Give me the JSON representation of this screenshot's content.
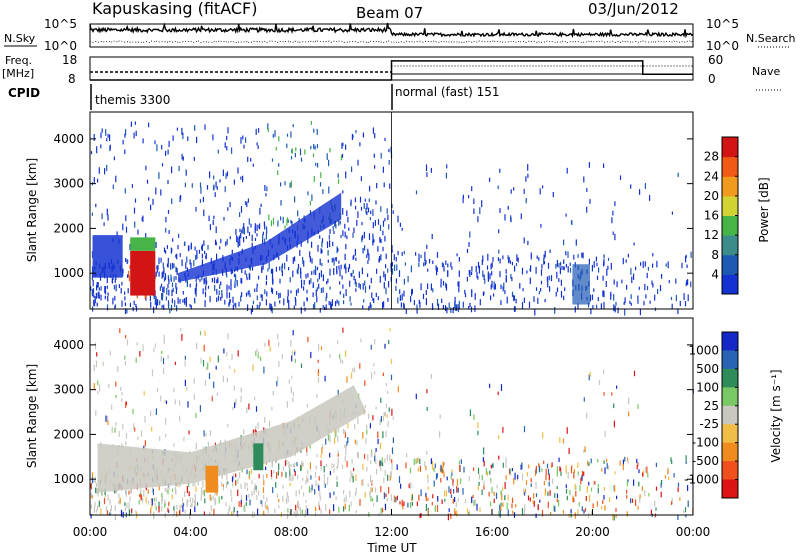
{
  "header": {
    "station": "Kapuskasing (fitACF)",
    "beam": "Beam 07",
    "date": "03/Jun/2012"
  },
  "strip_labels": {
    "nsky": "N.Sky",
    "nsearch": "N.Search",
    "freq": "Freq.",
    "freq_unit": "[MHz]",
    "nave": "Nave",
    "cpid": "CPID"
  },
  "cpid_segments": [
    {
      "label": "themis 3300",
      "start_hour": 0,
      "end_hour": 12
    },
    {
      "label": "normal (fast) 151",
      "start_hour": 12,
      "end_hour": 24
    }
  ],
  "chart_data": [
    {
      "type": "line",
      "id": "noise",
      "left_ticks": [
        "10^5",
        "10^0"
      ],
      "right_ticks": [
        "10^5",
        "10^0"
      ],
      "series": [
        {
          "name": "N.Sky"
        },
        {
          "name": "N.Search"
        }
      ]
    },
    {
      "type": "line",
      "id": "freq-nave",
      "left_ticks": [
        "18",
        "8"
      ],
      "right_ticks": [
        "60",
        "0"
      ],
      "freq_mhz_range": [
        8,
        18
      ],
      "nave_range": [
        0,
        60
      ],
      "nave_steps": [
        {
          "start_hour": 12,
          "end_hour": 22,
          "value": 50
        },
        {
          "start_hour": 22,
          "end_hour": 24,
          "value": 15
        }
      ]
    },
    {
      "type": "heatmap",
      "id": "power",
      "ylabel": "Slant Range [km]",
      "ylim": [
        200,
        4600
      ],
      "y_ticks": [
        1000,
        2000,
        3000,
        4000
      ],
      "xlim_hours": [
        0,
        24
      ],
      "colorbar": {
        "label": "Power [dB]",
        "ticks": [
          "4",
          "8",
          "12",
          "16",
          "20",
          "24",
          "28"
        ],
        "colors": [
          "#1432d2",
          "#1e5ab4",
          "#3c8c8c",
          "#46b446",
          "#d2d232",
          "#f09b1e",
          "#f05a14",
          "#d21414"
        ]
      }
    },
    {
      "type": "heatmap",
      "id": "velocity",
      "ylabel": "Slant Range [km]",
      "xlabel": "Time UT",
      "ylim": [
        200,
        4600
      ],
      "y_ticks": [
        1000,
        2000,
        3000,
        4000
      ],
      "xlim_hours": [
        0,
        24
      ],
      "x_ticks": [
        "00:00",
        "04:00",
        "08:00",
        "12:00",
        "16:00",
        "20:00",
        "00:00"
      ],
      "colorbar": {
        "label": "Velocity [m s⁻¹]",
        "ticks": [
          "1000",
          "500",
          "100",
          "25",
          "-25",
          "-100",
          "-500",
          "-1000"
        ],
        "colors": [
          "#1428c8",
          "#2864b4",
          "#2e8c5a",
          "#78c864",
          "#c8c8c0",
          "#f0be46",
          "#f08c1e",
          "#f0501e",
          "#dc1414"
        ]
      }
    }
  ]
}
